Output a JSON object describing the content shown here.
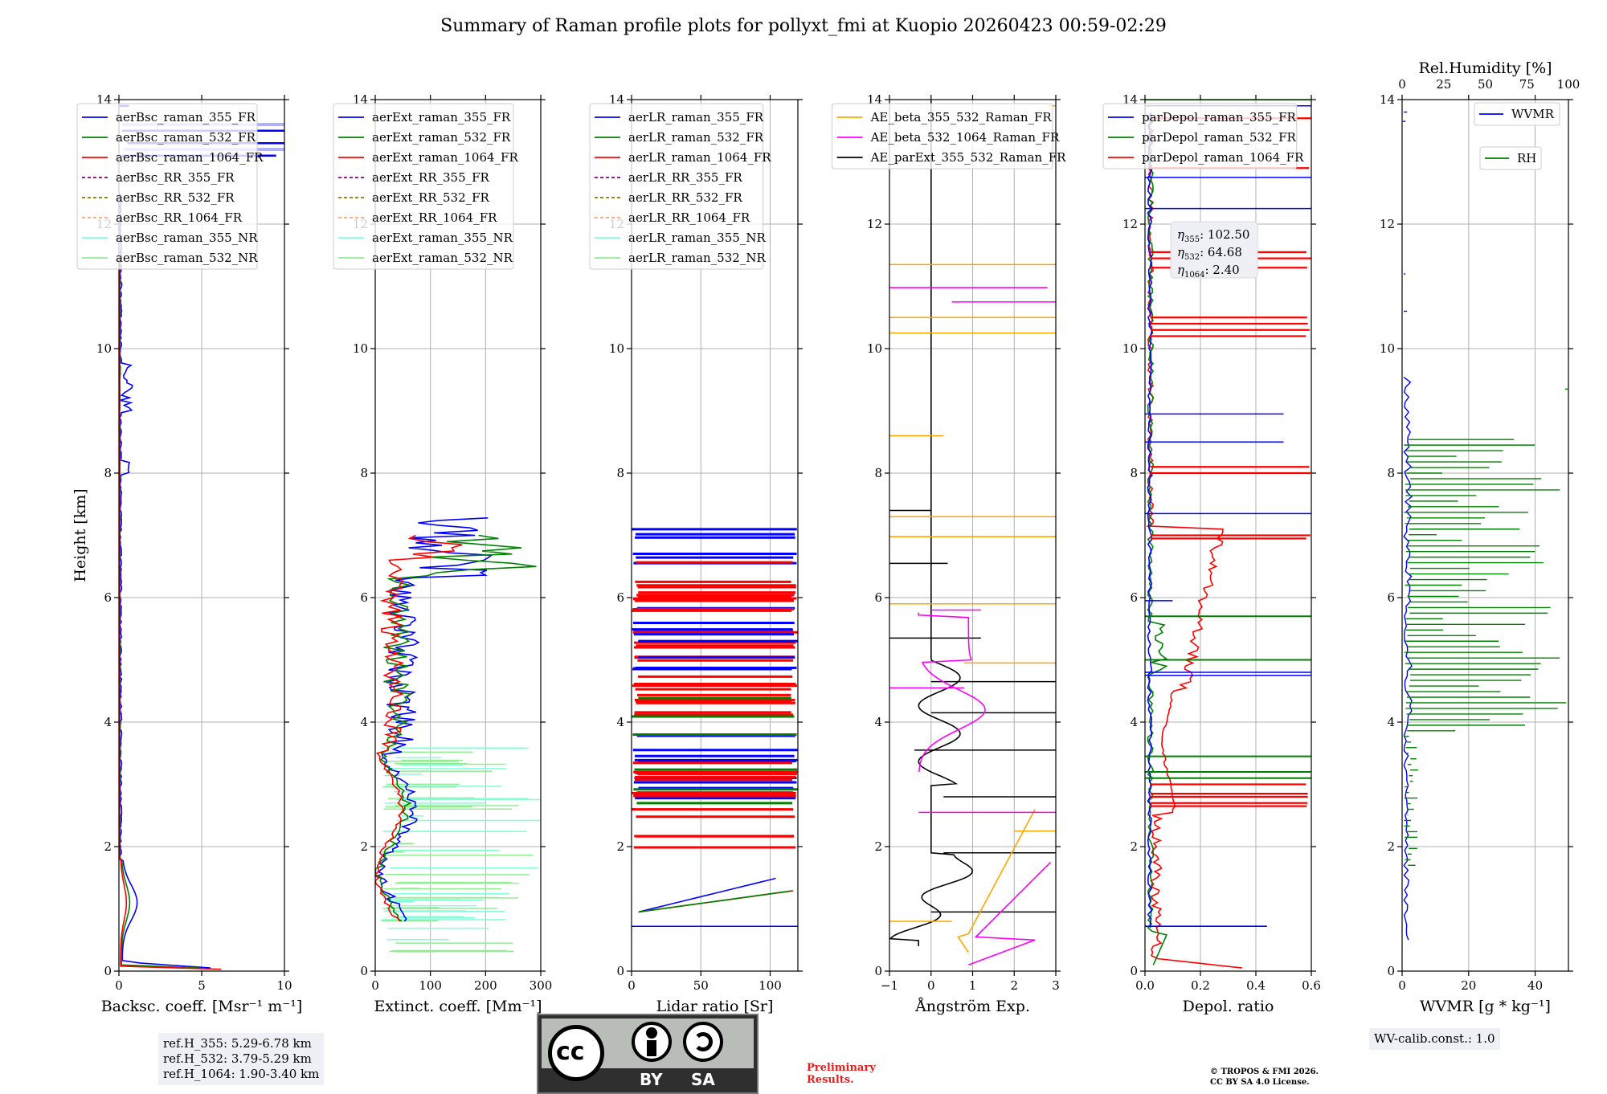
{
  "figure": {
    "title": "Summary of Raman profile plots for pollyxt_fmi at Kuopio 20260423 00:59-02:29",
    "y_label": "Height [km]"
  },
  "chart_data": [
    {
      "id": "bsc",
      "type": "line",
      "xlabel": "Backsc. coeff. [Msr⁻¹ m⁻¹]",
      "xlim": [
        0,
        10
      ],
      "xticks": [
        0,
        5,
        10
      ],
      "ylim": [
        0,
        14
      ],
      "yticks": [
        0,
        2,
        4,
        6,
        8,
        10,
        12,
        14
      ],
      "legend": [
        {
          "label": "aerBsc_raman_355_FR",
          "color": "#0000ff",
          "dash": false
        },
        {
          "label": "aerBsc_raman_532_FR",
          "color": "#008000",
          "dash": false
        },
        {
          "label": "aerBsc_raman_1064_FR",
          "color": "#ff0000",
          "dash": false
        },
        {
          "label": "aerBsc_RR_355_FR",
          "color": "#800080",
          "dash": true
        },
        {
          "label": "aerBsc_RR_532_FR",
          "color": "#808000",
          "dash": true
        },
        {
          "label": "aerBsc_RR_1064_FR",
          "color": "#ffa07a",
          "dash": true
        },
        {
          "label": "aerBsc_raman_355_NR",
          "color": "#7fffd4",
          "dash": false
        },
        {
          "label": "aerBsc_raman_532_NR",
          "color": "#90ee90",
          "dash": false
        }
      ]
    },
    {
      "id": "ext",
      "type": "line",
      "xlabel": "Extinct. coeff. [Mm⁻¹]",
      "xlim": [
        0,
        300
      ],
      "xticks": [
        0,
        100,
        200,
        300
      ],
      "ylim": [
        0,
        14
      ],
      "yticks": [
        0,
        2,
        4,
        6,
        8,
        10,
        12,
        14
      ],
      "legend": [
        {
          "label": "aerExt_raman_355_FR",
          "color": "#0000ff",
          "dash": false
        },
        {
          "label": "aerExt_raman_532_FR",
          "color": "#008000",
          "dash": false
        },
        {
          "label": "aerExt_raman_1064_FR",
          "color": "#ff0000",
          "dash": false
        },
        {
          "label": "aerExt_RR_355_FR",
          "color": "#800080",
          "dash": true
        },
        {
          "label": "aerExt_RR_532_FR",
          "color": "#808000",
          "dash": true
        },
        {
          "label": "aerExt_RR_1064_FR",
          "color": "#ffa07a",
          "dash": true
        },
        {
          "label": "aerExt_raman_355_NR",
          "color": "#7fffd4",
          "dash": false
        },
        {
          "label": "aerExt_raman_532_NR",
          "color": "#90ee90",
          "dash": false
        }
      ]
    },
    {
      "id": "lr",
      "type": "line",
      "xlabel": "Lidar ratio [Sr]",
      "xlim": [
        0,
        120
      ],
      "xticks": [
        0,
        50,
        100
      ],
      "ylim": [
        0,
        14
      ],
      "yticks": [
        0,
        2,
        4,
        6,
        8,
        10,
        12,
        14
      ],
      "legend": [
        {
          "label": "aerLR_raman_355_FR",
          "color": "#0000ff",
          "dash": false
        },
        {
          "label": "aerLR_raman_532_FR",
          "color": "#008000",
          "dash": false
        },
        {
          "label": "aerLR_raman_1064_FR",
          "color": "#ff0000",
          "dash": false
        },
        {
          "label": "aerLR_RR_355_FR",
          "color": "#800080",
          "dash": true
        },
        {
          "label": "aerLR_RR_532_FR",
          "color": "#808000",
          "dash": true
        },
        {
          "label": "aerLR_RR_1064_FR",
          "color": "#ffa07a",
          "dash": true
        },
        {
          "label": "aerLR_raman_355_NR",
          "color": "#7fffd4",
          "dash": false
        },
        {
          "label": "aerLR_raman_532_NR",
          "color": "#90ee90",
          "dash": false
        }
      ]
    },
    {
      "id": "ae",
      "type": "line",
      "xlabel": "Ångström Exp.",
      "xlim": [
        -1,
        3
      ],
      "xticks": [
        -1,
        0,
        1,
        2,
        3
      ],
      "xtick_labels": [
        "−1",
        "0",
        "1",
        "2",
        "3"
      ],
      "ylim": [
        0,
        14
      ],
      "yticks": [
        0,
        2,
        4,
        6,
        8,
        10,
        12,
        14
      ],
      "legend": [
        {
          "label": "AE_beta_355_532_Raman_FR",
          "color": "#ffa500",
          "dash": false
        },
        {
          "label": "AE_beta_532_1064_Raman_FR",
          "color": "#ff00ff",
          "dash": false
        },
        {
          "label": "AE_parExt_355_532_Raman_FR",
          "color": "#000000",
          "dash": false
        }
      ]
    },
    {
      "id": "depol",
      "type": "line",
      "xlabel": "Depol. ratio",
      "xlim": [
        0,
        0.6
      ],
      "xticks": [
        0,
        0.2,
        0.4,
        0.6
      ],
      "xtick_labels": [
        "0.0",
        "0.2",
        "0.4",
        "0.6"
      ],
      "ylim": [
        0,
        14
      ],
      "yticks": [
        0,
        2,
        4,
        6,
        8,
        10,
        12,
        14
      ],
      "legend": [
        {
          "label": "parDepol_raman_355_FR",
          "color": "#0000ff",
          "dash": false
        },
        {
          "label": "parDepol_raman_532_FR",
          "color": "#008000",
          "dash": false
        },
        {
          "label": "parDepol_raman_1064_FR",
          "color": "#ff0000",
          "dash": false
        }
      ],
      "eta": [
        {
          "name": "η",
          "sub": "355",
          "value": "102.50"
        },
        {
          "name": "η",
          "sub": "532",
          "value": "64.68"
        },
        {
          "name": "η",
          "sub": "1064",
          "value": "2.40"
        }
      ]
    },
    {
      "id": "wv",
      "type": "line",
      "xlabel": "WVMR [g * kg⁻¹]",
      "xlim": [
        0,
        50
      ],
      "xticks": [
        0,
        20,
        40
      ],
      "x2label": "Rel.Humidity [%]",
      "x2lim": [
        0,
        100
      ],
      "x2ticks": [
        0,
        25,
        50,
        75,
        100
      ],
      "ylim": [
        0,
        14
      ],
      "yticks": [
        0,
        2,
        4,
        6,
        8,
        10,
        12,
        14
      ],
      "legend": [
        {
          "label": "WVMR",
          "color": "#0000ff",
          "dash": false
        },
        {
          "label": "RH",
          "color": "#008000",
          "dash": false
        }
      ]
    }
  ],
  "annotations": {
    "ref_heights": [
      "ref.H_355: 5.29-6.78 km",
      "ref.H_532: 3.79-5.29 km",
      "ref.H_1064: 1.90-3.40 km"
    ],
    "wv_calib": "WV-calib.const.: 1.0",
    "preliminary": [
      "Preliminary",
      "Results."
    ],
    "copyright": [
      "© TROPOS & FMI 2026.",
      "CC BY SA 4.0 License."
    ],
    "license_badge": {
      "left": "cc",
      "by": "BY",
      "sa": "SA"
    }
  }
}
